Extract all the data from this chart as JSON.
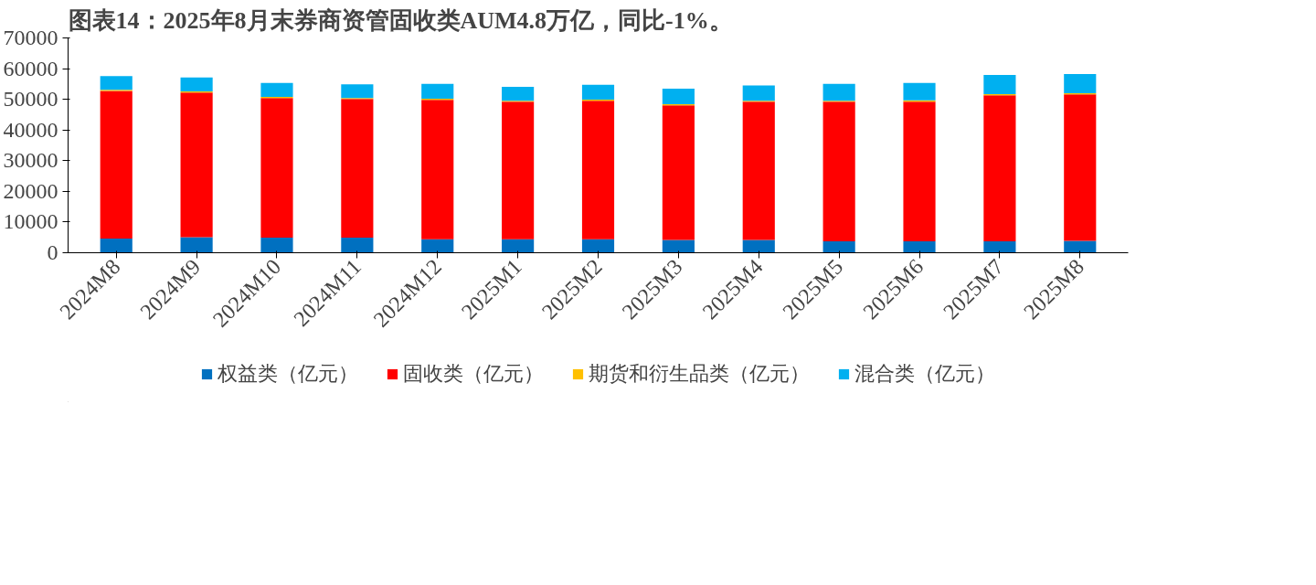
{
  "chart_data": {
    "type": "bar",
    "stacked": true,
    "title": "图表14：2025年8月末券商资管固收类AUM4.8万亿，同比-1%。",
    "categories": [
      "2024M8",
      "2024M9",
      "2024M10",
      "2024M11",
      "2024M12",
      "2025M1",
      "2025M2",
      "2025M3",
      "2025M4",
      "2025M5",
      "2025M6",
      "2025M7",
      "2025M8"
    ],
    "series": [
      {
        "name": "权益类（亿元）",
        "color": "#0070c0",
        "values": [
          4600,
          5100,
          4900,
          4900,
          4400,
          4400,
          4400,
          4200,
          4200,
          3700,
          3700,
          3700,
          3900
        ]
      },
      {
        "name": "固收类（亿元）",
        "color": "#ff0000",
        "values": [
          48100,
          47100,
          45500,
          45200,
          45400,
          44800,
          45100,
          43800,
          45000,
          45500,
          45500,
          47600,
          47700
        ]
      },
      {
        "name": "期货和衍生品类（亿元）",
        "color": "#ffc000",
        "values": [
          400,
          400,
          400,
          300,
          400,
          300,
          400,
          400,
          300,
          300,
          500,
          400,
          400
        ]
      },
      {
        "name": "混合类（亿元）",
        "color": "#00b0f0",
        "values": [
          4500,
          4500,
          4500,
          4500,
          4800,
          4600,
          4800,
          5100,
          5000,
          5500,
          5600,
          6200,
          6200
        ]
      }
    ],
    "ylim": [
      0,
      70000
    ],
    "yticks": [
      0,
      10000,
      20000,
      30000,
      40000,
      50000,
      60000,
      70000
    ],
    "grid": false,
    "legend": "bottom"
  }
}
